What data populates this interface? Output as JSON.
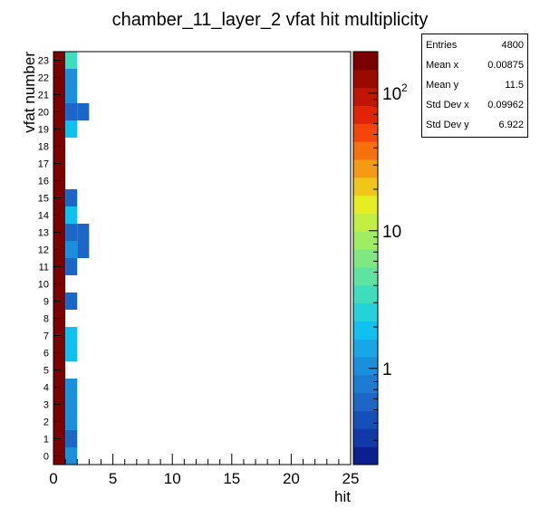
{
  "chart_data": {
    "type": "heatmap",
    "title": "chamber_11_layer_2 vfat hit multiplicity",
    "xlabel": "hit",
    "ylabel": "vfat number",
    "xlim": [
      0,
      25
    ],
    "ylim": [
      -0.5,
      23.5
    ],
    "x_bin_width": 1,
    "x_ticks": [
      0,
      5,
      10,
      15,
      20,
      25
    ],
    "x_tick_labels": [
      "0",
      "5",
      "10",
      "15",
      "20",
      "25"
    ],
    "y_ticks": [
      0,
      1,
      2,
      3,
      4,
      5,
      6,
      7,
      8,
      9,
      10,
      11,
      12,
      13,
      14,
      15,
      16,
      17,
      18,
      19,
      20,
      21,
      22,
      23
    ],
    "y_tick_labels": [
      "0",
      "1",
      "2",
      "3",
      "4",
      "5",
      "6",
      "7",
      "8",
      "9",
      "10",
      "11",
      "12",
      "13",
      "14",
      "15",
      "16",
      "17",
      "18",
      "19",
      "20",
      "21",
      "22",
      "23"
    ],
    "z_scale": "log",
    "z_range": [
      0.2,
      200
    ],
    "z_tick_labels": [
      {
        "value": 1,
        "base": "1",
        "exp": ""
      },
      {
        "value": 10,
        "base": "10",
        "exp": ""
      },
      {
        "value": 100,
        "base": "10",
        "exp": "2"
      }
    ],
    "color_palette": [
      "#0b1f8f",
      "#0f3aa8",
      "#1550b8",
      "#1b66c6",
      "#1e7ad2",
      "#1c8fdc",
      "#17a6e6",
      "#0fc0f0",
      "#25d2da",
      "#3fdcc0",
      "#5fe3a0",
      "#7fe882",
      "#a0ec62",
      "#c3ee42",
      "#e6ee22",
      "#f0c61a",
      "#f49a14",
      "#f6700e",
      "#f4460a",
      "#e22406",
      "#c01404",
      "#9a0a02",
      "#7a0201"
    ],
    "empty_color": "#ffffff",
    "grid": false,
    "cells": [
      {
        "x": 0,
        "y": 0,
        "z": 173
      },
      {
        "x": 1,
        "y": 0,
        "z": 1
      },
      {
        "x": 0,
        "y": 1,
        "z": 173
      },
      {
        "x": 1,
        "y": 1,
        "z": 0.6
      },
      {
        "x": 0,
        "y": 2,
        "z": 173
      },
      {
        "x": 1,
        "y": 2,
        "z": 1
      },
      {
        "x": 0,
        "y": 3,
        "z": 173
      },
      {
        "x": 1,
        "y": 3,
        "z": 1
      },
      {
        "x": 0,
        "y": 4,
        "z": 173
      },
      {
        "x": 1,
        "y": 4,
        "z": 1
      },
      {
        "x": 0,
        "y": 5,
        "z": 174
      },
      {
        "x": 0,
        "y": 6,
        "z": 172
      },
      {
        "x": 1,
        "y": 6,
        "z": 2
      },
      {
        "x": 0,
        "y": 7,
        "z": 172
      },
      {
        "x": 1,
        "y": 7,
        "z": 2
      },
      {
        "x": 0,
        "y": 8,
        "z": 174
      },
      {
        "x": 0,
        "y": 9,
        "z": 173
      },
      {
        "x": 1,
        "y": 9,
        "z": 0.6
      },
      {
        "x": 0,
        "y": 10,
        "z": 174
      },
      {
        "x": 0,
        "y": 11,
        "z": 173
      },
      {
        "x": 1,
        "y": 11,
        "z": 0.6
      },
      {
        "x": 0,
        "y": 12,
        "z": 172
      },
      {
        "x": 1,
        "y": 12,
        "z": 1
      },
      {
        "x": 2,
        "y": 12,
        "z": 0.6
      },
      {
        "x": 0,
        "y": 13,
        "z": 172
      },
      {
        "x": 1,
        "y": 13,
        "z": 0.6
      },
      {
        "x": 2,
        "y": 13,
        "z": 0.6
      },
      {
        "x": 0,
        "y": 14,
        "z": 172
      },
      {
        "x": 1,
        "y": 14,
        "z": 2
      },
      {
        "x": 0,
        "y": 15,
        "z": 173
      },
      {
        "x": 1,
        "y": 15,
        "z": 0.6
      },
      {
        "x": 0,
        "y": 16,
        "z": 174
      },
      {
        "x": 0,
        "y": 17,
        "z": 174
      },
      {
        "x": 0,
        "y": 18,
        "z": 174
      },
      {
        "x": 0,
        "y": 19,
        "z": 172
      },
      {
        "x": 1,
        "y": 19,
        "z": 2
      },
      {
        "x": 0,
        "y": 20,
        "z": 172
      },
      {
        "x": 1,
        "y": 20,
        "z": 0.6
      },
      {
        "x": 2,
        "y": 20,
        "z": 0.6
      },
      {
        "x": 0,
        "y": 21,
        "z": 173
      },
      {
        "x": 1,
        "y": 21,
        "z": 1
      },
      {
        "x": 0,
        "y": 22,
        "z": 173
      },
      {
        "x": 1,
        "y": 22,
        "z": 1
      },
      {
        "x": 0,
        "y": 23,
        "z": 171
      },
      {
        "x": 1,
        "y": 23,
        "z": 3
      }
    ]
  },
  "stats": {
    "title": "",
    "rows": [
      {
        "key": "Entries",
        "value": "4800"
      },
      {
        "key": "Mean x",
        "value": "0.00875"
      },
      {
        "key": "Mean y",
        "value": "11.5"
      },
      {
        "key": "Std Dev x",
        "value": "0.09962"
      },
      {
        "key": "Std Dev y",
        "value": "6.922"
      }
    ]
  }
}
